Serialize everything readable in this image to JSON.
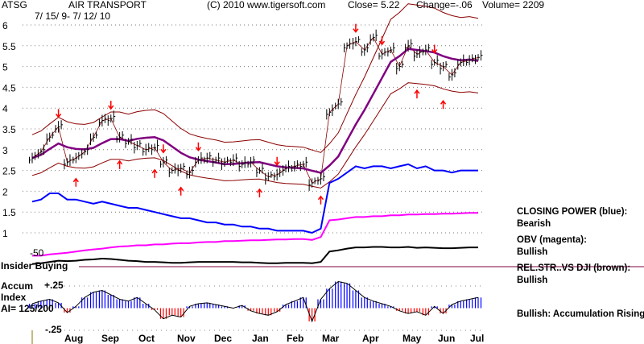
{
  "header": {
    "ticker": "ATSG",
    "name": "AIR TRANSPORT",
    "dates": "7/ 15/ 9- 7/ 12/ 10",
    "copyright": "(C) 2010 www.tigersoft.com",
    "close": "Close=  5.22",
    "change": "Change=-.06",
    "volume": "Volume= 2209"
  },
  "panel": {
    "insider": "Insider Buying",
    "insider_level": "-50",
    "accum_title": "Accum",
    "accum_index": "Index",
    "ai": "AI= 125/200",
    "accum_top": "+.25",
    "accum_bottom": "-.25"
  },
  "legend": [
    {
      "label": "CLOSING POWER (blue):",
      "value": "Bearish"
    },
    {
      "label": "OBV (magenta):",
      "value": "Bullish"
    },
    {
      "label": "REL.STR..VS DJI (brown):",
      "value": "Bullish"
    },
    {
      "label": "",
      "value": "Bullish: Accumulation Rising"
    }
  ],
  "colors": {
    "price": "#000000",
    "ma": "#800080",
    "bands": "#8b0000",
    "closing_power": "#0000ff",
    "obv": "#ff00ff",
    "relstr": "#000000",
    "accum_pos": "#0000ff",
    "accum_neg": "#ff0000",
    "arrow": "#ff0000"
  },
  "chart_data": {
    "type": "line",
    "title": "ATSG AIR TRANSPORT",
    "yticks": [
      6,
      5.5,
      5,
      4.5,
      4,
      3.5,
      3,
      2.5,
      2,
      1.5,
      1
    ],
    "ylim": [
      1,
      6
    ],
    "months": [
      "Aug",
      "Sep",
      "Oct",
      "Nov",
      "Dec",
      "Jan",
      "Feb",
      "Mar",
      "Apr",
      "May",
      "Jun",
      "Jul"
    ],
    "weekly_close": [
      2.8,
      2.95,
      3.3,
      3.55,
      2.7,
      2.8,
      2.95,
      3.3,
      3.7,
      3.75,
      3.3,
      3.2,
      3.1,
      3.0,
      3.05,
      2.7,
      2.5,
      2.55,
      2.45,
      2.75,
      2.8,
      2.75,
      2.7,
      2.75,
      2.65,
      2.7,
      2.5,
      2.35,
      2.4,
      2.55,
      2.6,
      2.65,
      2.2,
      2.3,
      3.9,
      4.1,
      5.5,
      5.6,
      5.4,
      5.7,
      5.3,
      5.4,
      5.0,
      5.5,
      5.3,
      5.4,
      5.1,
      5.0,
      4.8,
      5.1,
      5.15,
      5.22
    ],
    "closing_power": [
      1.75,
      1.8,
      1.95,
      1.95,
      1.8,
      1.8,
      1.75,
      1.7,
      1.75,
      1.7,
      1.65,
      1.6,
      1.6,
      1.55,
      1.5,
      1.45,
      1.4,
      1.35,
      1.35,
      1.3,
      1.25,
      1.25,
      1.2,
      1.2,
      1.15,
      1.15,
      1.1,
      1.1,
      1.05,
      1.05,
      1.05,
      1.05,
      1.0,
      1.1,
      2.2,
      2.3,
      2.45,
      2.6,
      2.55,
      2.6,
      2.6,
      2.55,
      2.6,
      2.65,
      2.55,
      2.6,
      2.5,
      2.5,
      2.45,
      2.5,
      2.5,
      2.5
    ],
    "obv": [
      0.45,
      0.45,
      0.48,
      0.5,
      0.52,
      0.55,
      0.58,
      0.6,
      0.62,
      0.65,
      0.67,
      0.68,
      0.7,
      0.7,
      0.72,
      0.72,
      0.74,
      0.75,
      0.75,
      0.77,
      0.78,
      0.78,
      0.8,
      0.8,
      0.81,
      0.82,
      0.82,
      0.83,
      0.84,
      0.84,
      0.85,
      0.85,
      0.83,
      0.9,
      1.3,
      1.32,
      1.35,
      1.38,
      1.38,
      1.4,
      1.4,
      1.42,
      1.42,
      1.44,
      1.44,
      1.45,
      1.45,
      1.46,
      1.46,
      1.47,
      1.48,
      1.48
    ],
    "relstr": [
      0.25,
      0.27,
      0.3,
      0.33,
      0.32,
      0.33,
      0.35,
      0.36,
      0.38,
      0.37,
      0.35,
      0.33,
      0.32,
      0.3,
      0.3,
      0.29,
      0.28,
      0.28,
      0.29,
      0.3,
      0.3,
      0.3,
      0.3,
      0.3,
      0.29,
      0.29,
      0.28,
      0.27,
      0.27,
      0.28,
      0.28,
      0.28,
      0.27,
      0.3,
      0.55,
      0.58,
      0.62,
      0.65,
      0.65,
      0.66,
      0.66,
      0.65,
      0.65,
      0.66,
      0.64,
      0.65,
      0.64,
      0.63,
      0.63,
      0.64,
      0.65,
      0.65
    ],
    "accum_index": [
      0.05,
      0.08,
      0.1,
      0.06,
      -0.05,
      0.02,
      0.12,
      0.18,
      0.2,
      0.15,
      0.1,
      0.08,
      0.12,
      0.05,
      -0.02,
      -0.12,
      -0.08,
      -0.1,
      0.02,
      0.05,
      0.06,
      0.04,
      0.02,
      0.0,
      0.03,
      -0.03,
      -0.06,
      -0.08,
      -0.04,
      0.04,
      0.08,
      0.12,
      -0.15,
      0.1,
      0.22,
      0.3,
      0.28,
      0.2,
      0.12,
      0.08,
      0.05,
      0.02,
      -0.03,
      -0.06,
      -0.04,
      -0.08,
      0.02,
      -0.06,
      0.04,
      0.08,
      0.1,
      0.12
    ],
    "signals": [
      {
        "week": 3,
        "type": "sell"
      },
      {
        "week": 5,
        "type": "buy"
      },
      {
        "week": 9,
        "type": "sell"
      },
      {
        "week": 10,
        "type": "buy"
      },
      {
        "week": 15,
        "type": "sell"
      },
      {
        "week": 14,
        "type": "buy"
      },
      {
        "week": 17,
        "type": "buy"
      },
      {
        "week": 19,
        "type": "sell"
      },
      {
        "week": 26,
        "type": "buy"
      },
      {
        "week": 28,
        "type": "sell"
      },
      {
        "week": 33,
        "type": "buy"
      },
      {
        "week": 37,
        "type": "sell"
      },
      {
        "week": 40,
        "type": "sell"
      },
      {
        "week": 44,
        "type": "buy"
      },
      {
        "week": 46,
        "type": "sell"
      },
      {
        "week": 47,
        "type": "buy"
      }
    ]
  }
}
